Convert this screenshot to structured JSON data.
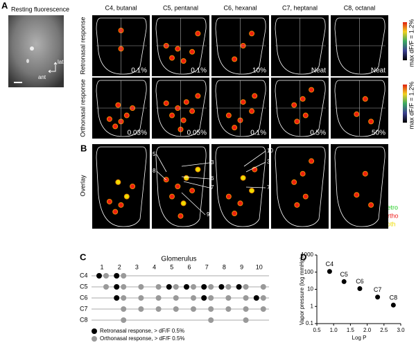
{
  "panel_labels": [
    "A",
    "B",
    "C",
    "D"
  ],
  "panel_a": {
    "resting_title": "Resting fluorescence",
    "lat": "lat",
    "ant": "ant",
    "odors": [
      "C4, butanal",
      "C5, pentanal",
      "C6, hexanal",
      "C7, heptanal",
      "C8, octanal"
    ],
    "rows": [
      {
        "label": "Retronasal response",
        "concentrations": [
          "0.1%",
          "0.1%",
          "10%",
          "Neat",
          "Neat"
        ]
      },
      {
        "label": "Orthonasal response",
        "concentrations": [
          "0.03%",
          "0.05%",
          "0.1%",
          "0.5%",
          "50%"
        ]
      }
    ],
    "colorbar_label": "max dF/F = 1.2%"
  },
  "panel_b": {
    "row_label": "Overlay",
    "c5_callouts": [
      "5",
      "8",
      "3",
      "6",
      "7",
      "9"
    ],
    "c6_callouts": [
      "10",
      "3",
      "7"
    ],
    "legend": [
      "Retro",
      "Ortho",
      "Both"
    ]
  },
  "panel_c": {
    "title": "Glomerulus",
    "glomeruli": [
      "1",
      "2",
      "3",
      "4",
      "5",
      "6",
      "7",
      "8",
      "9",
      "10"
    ],
    "rows": [
      {
        "label": "C4",
        "retro": [
          1,
          2
        ],
        "ortho": [
          1,
          2
        ]
      },
      {
        "label": "C5",
        "retro": [
          2,
          5,
          6,
          7,
          8,
          9
        ],
        "ortho": [
          1,
          2,
          3,
          4,
          5,
          6,
          7,
          8,
          9,
          10
        ]
      },
      {
        "label": "C6",
        "retro": [
          2,
          7,
          10
        ],
        "ortho": [
          2,
          3,
          4,
          5,
          6,
          7,
          8,
          9,
          10
        ]
      },
      {
        "label": "C7",
        "retro": [],
        "ortho": [
          2,
          3,
          4,
          5,
          6,
          7,
          8,
          9,
          10
        ]
      },
      {
        "label": "C8",
        "retro": [],
        "ortho": [
          2,
          7,
          9
        ]
      }
    ],
    "legend": [
      "Retronasal response, > dF/F 0.5%",
      "Orthonasal response, > dF/F 0.5%"
    ]
  },
  "chart_data": {
    "type": "scatter",
    "x_label": "Log P",
    "y_label": "Vapor pressure (log mmHg)",
    "point_labels": [
      "C4",
      "C5",
      "C6",
      "C7",
      "C8"
    ],
    "x": [
      0.88,
      1.31,
      1.78,
      2.31,
      2.78
    ],
    "values": [
      110,
      28,
      11,
      3.5,
      1.2
    ],
    "xlim": [
      0.5,
      3.0
    ],
    "xticks": [
      0.5,
      {
        "value": 1,
        "label": "1.0"
      },
      1.5,
      {
        "value": 2,
        "label": "2.0"
      },
      2.5,
      {
        "value": 3,
        "label": "3.0"
      }
    ],
    "ylim": [
      0.1,
      1000
    ],
    "yticks": [
      0.1,
      1,
      10,
      100,
      1000
    ],
    "log_y": true,
    "color": "#000000"
  }
}
